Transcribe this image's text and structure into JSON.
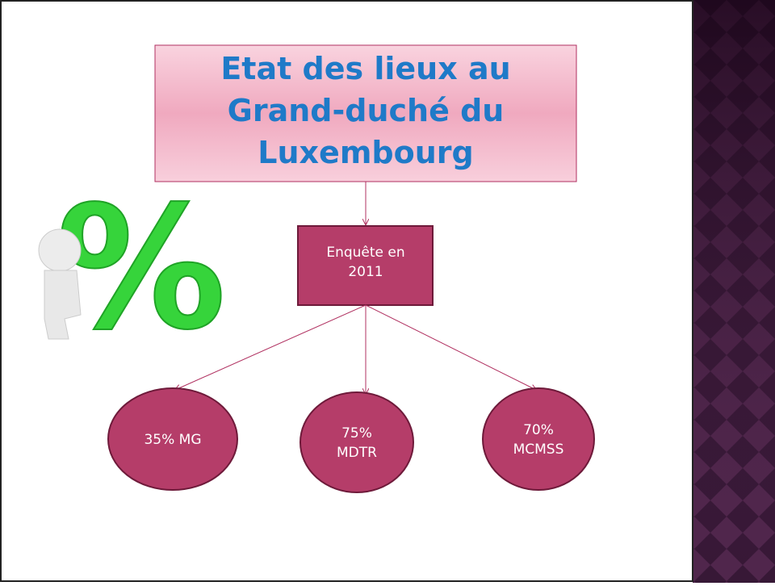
{
  "title": "Etat des lieux au Grand-duché du Luxembourg",
  "center": "Enquête en 2011",
  "nodes": [
    {
      "label": "35% MG"
    },
    {
      "label": "75% MDTR"
    },
    {
      "label": "70% MCMSS"
    }
  ]
}
